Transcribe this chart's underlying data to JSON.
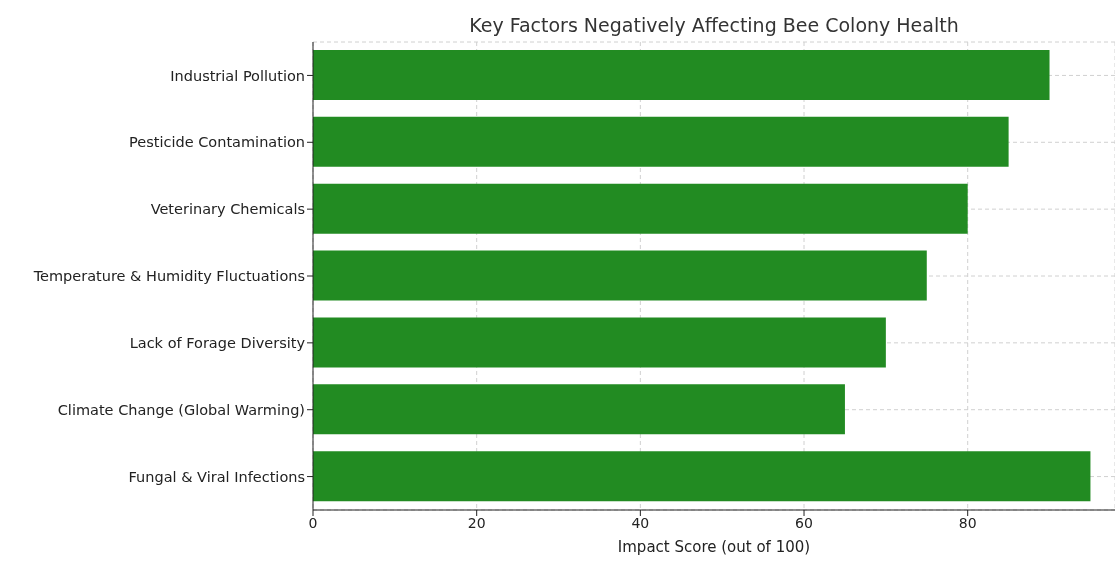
{
  "chart_data": {
    "type": "bar",
    "orientation": "horizontal",
    "title": "Key Factors Negatively Affecting Bee Colony Health",
    "xlabel": "Impact Score (out of 100)",
    "categories": [
      "Industrial Pollution",
      "Pesticide Contamination",
      "Veterinary Chemicals",
      "Temperature & Humidity Fluctuations",
      "Lack of Forage Diversity",
      "Climate Change (Global Warming)",
      "Fungal & Viral Infections"
    ],
    "values": [
      90,
      85,
      80,
      75,
      70,
      65,
      95
    ],
    "color": "#228b22",
    "xlim": [
      0,
      98
    ],
    "xticks": [
      0,
      20,
      40,
      60,
      80
    ],
    "grid": true
  }
}
